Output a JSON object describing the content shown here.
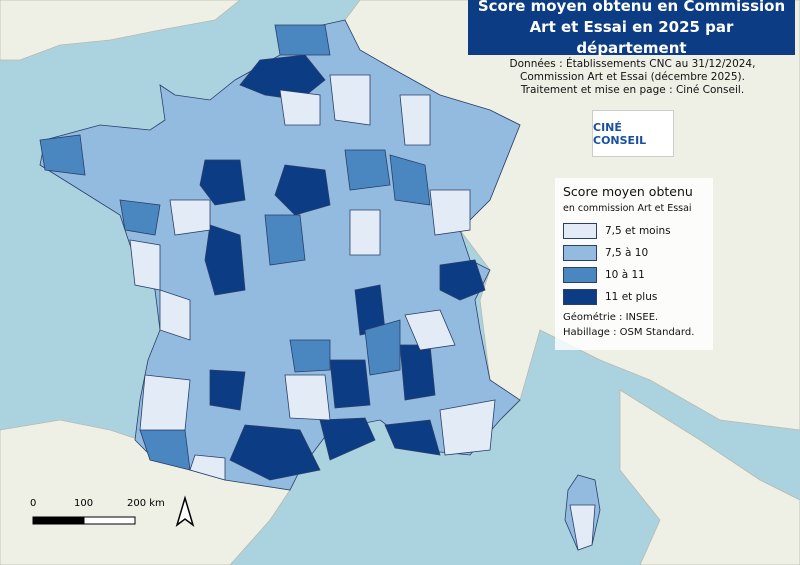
{
  "header": {
    "title": "Score moyen obtenu en Commission Art et Essai en 2025 par département"
  },
  "sources": {
    "lines": [
      "Données : Établissements CNC au 31/12/2024,",
      "Commission Art et Essai (décembre 2025).",
      "Traitement et mise en page : Ciné Conseil."
    ]
  },
  "logo": {
    "text": "CINÉ CONSEIL"
  },
  "legend": {
    "title": "Score moyen obtenu",
    "subtitle": "en commission Art et Essai",
    "items": [
      {
        "label": "7,5 et moins",
        "color": "#e3ecf6"
      },
      {
        "label": "7,5 à 10",
        "color": "#93bbdf"
      },
      {
        "label": "10 à 11",
        "color": "#4a86c0"
      },
      {
        "label": "11 et plus",
        "color": "#0c3c84"
      }
    ],
    "notes": [
      "Géométrie : INSEE.",
      "Habillage : OSM Standard."
    ]
  },
  "scale_bar": {
    "labels": [
      "0",
      "100",
      "200 km"
    ]
  }
}
